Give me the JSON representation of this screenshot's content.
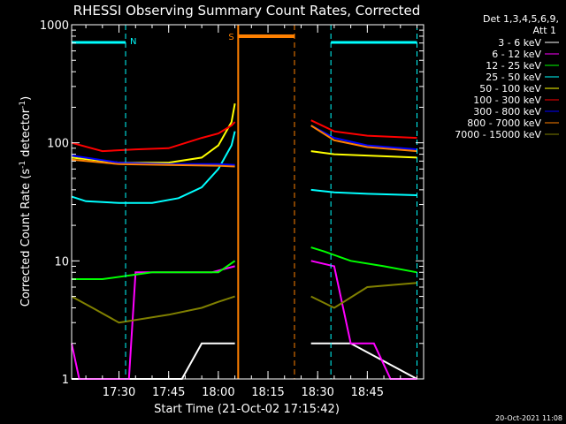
{
  "chart_data": {
    "type": "line",
    "title": "RHESSI Observing Summary Count Rates, Corrected",
    "xlabel": "Start Time (21-Oct-02 17:15:42)",
    "ylabel": "Corrected Count Rate (s⁻¹ detector⁻¹)",
    "ylabel_base": "Corrected Count Rate (s",
    "ylabel_sup1": "-1",
    "ylabel_mid": " detector",
    "ylabel_sup2": "-1",
    "ylabel_end": ")",
    "y_scale": "log",
    "ylim": [
      1,
      1000
    ],
    "xlim": [
      "17:15:42",
      "19:02:00"
    ],
    "x_ticks": [
      "17:30",
      "17:45",
      "18:00",
      "18:15",
      "18:30",
      "18:45"
    ],
    "y_ticks": [
      "1",
      "10",
      "100",
      "1000"
    ],
    "legend": {
      "placement": "right",
      "header_line1": "Det 1,3,4,5,6,9,",
      "header_line2": "Att 1",
      "entries": [
        {
          "label": "3 - 6 keV",
          "color": "#ffffff"
        },
        {
          "label": "6 - 12 keV",
          "color": "#ff00ff"
        },
        {
          "label": "12 - 25 keV",
          "color": "#00ff00"
        },
        {
          "label": "25 - 50 keV",
          "color": "#00ffff"
        },
        {
          "label": "50 - 100 keV",
          "color": "#ffff00"
        },
        {
          "label": "100 - 300 keV",
          "color": "#ff0000"
        },
        {
          "label": "300 - 800 keV",
          "color": "#0000ff"
        },
        {
          "label": "800 - 7000 keV",
          "color": "#ff8000"
        },
        {
          "label": "7000 - 15000 keV",
          "color": "#808000"
        }
      ]
    },
    "annotations": {
      "night_label": "N",
      "saa_label": "S",
      "night_color": "#00ffff",
      "saa_color": "#ff8000",
      "night_periods": [
        [
          "17:15:42",
          "17:32:00"
        ],
        [
          "18:34:00",
          "19:00:00"
        ]
      ],
      "saa_period": [
        "18:06:00",
        "18:23:00"
      ],
      "data_gap": [
        "18:06:00",
        "18:28:00"
      ]
    },
    "series": [
      {
        "name": "3 - 6 keV",
        "color": "#ffffff",
        "points": [
          [
            "17:15:42",
            1
          ],
          [
            "17:49:00",
            1
          ],
          [
            "17:55:00",
            2
          ],
          [
            "18:05:00",
            2
          ],
          [
            "18:28:00",
            2
          ],
          [
            "18:40:00",
            2
          ],
          [
            "19:00:00",
            1
          ]
        ]
      },
      {
        "name": "6 - 12 keV",
        "color": "#ff00ff",
        "points": [
          [
            "17:15:42",
            2
          ],
          [
            "17:18:00",
            1
          ],
          [
            "17:33:00",
            1
          ],
          [
            "17:35:00",
            8
          ],
          [
            "17:50:00",
            8
          ],
          [
            "17:58:00",
            8
          ],
          [
            "18:05:00",
            9
          ],
          [
            "18:28:00",
            10
          ],
          [
            "18:35:00",
            9
          ],
          [
            "18:40:00",
            2
          ],
          [
            "18:47:00",
            2
          ],
          [
            "18:52:00",
            1
          ],
          [
            "19:00:00",
            1
          ]
        ]
      },
      {
        "name": "12 - 25 keV",
        "color": "#00ff00",
        "points": [
          [
            "17:15:42",
            7
          ],
          [
            "17:25:00",
            7
          ],
          [
            "17:40:00",
            8
          ],
          [
            "17:50:00",
            8
          ],
          [
            "18:00:00",
            8
          ],
          [
            "18:05:00",
            10
          ],
          [
            "18:28:00",
            13
          ],
          [
            "18:32:00",
            12
          ],
          [
            "18:40:00",
            10
          ],
          [
            "18:50:00",
            9
          ],
          [
            "19:00:00",
            8
          ]
        ]
      },
      {
        "name": "25 - 50 keV",
        "color": "#00ffff",
        "points": [
          [
            "17:15:42",
            35
          ],
          [
            "17:20:00",
            32
          ],
          [
            "17:30:00",
            31
          ],
          [
            "17:40:00",
            31
          ],
          [
            "17:48:00",
            34
          ],
          [
            "17:55:00",
            42
          ],
          [
            "18:00:00",
            60
          ],
          [
            "18:04:00",
            95
          ],
          [
            "18:05:00",
            125
          ],
          [
            "18:28:00",
            40
          ],
          [
            "18:35:00",
            38
          ],
          [
            "18:45:00",
            37
          ],
          [
            "19:00:00",
            36
          ]
        ]
      },
      {
        "name": "50 - 100 keV",
        "color": "#ffff00",
        "points": [
          [
            "17:15:42",
            75
          ],
          [
            "17:30:00",
            68
          ],
          [
            "17:45:00",
            68
          ],
          [
            "17:55:00",
            75
          ],
          [
            "18:00:00",
            95
          ],
          [
            "18:04:00",
            150
          ],
          [
            "18:05:00",
            215
          ],
          [
            "18:28:00",
            85
          ],
          [
            "18:35:00",
            80
          ],
          [
            "18:45:00",
            78
          ],
          [
            "19:00:00",
            75
          ]
        ]
      },
      {
        "name": "100 - 300 keV",
        "color": "#ff0000",
        "points": [
          [
            "17:15:42",
            100
          ],
          [
            "17:25:00",
            85
          ],
          [
            "17:35:00",
            88
          ],
          [
            "17:45:00",
            90
          ],
          [
            "17:55:00",
            110
          ],
          [
            "18:00:00",
            120
          ],
          [
            "18:04:00",
            140
          ],
          [
            "18:05:00",
            150
          ],
          [
            "18:28:00",
            155
          ],
          [
            "18:35:00",
            125
          ],
          [
            "18:45:00",
            115
          ],
          [
            "19:00:00",
            110
          ]
        ]
      },
      {
        "name": "300 - 800 keV",
        "color": "#0000ff",
        "points": [
          [
            "17:15:42",
            78
          ],
          [
            "17:30:00",
            68
          ],
          [
            "17:45:00",
            66
          ],
          [
            "18:00:00",
            66
          ],
          [
            "18:05:00",
            65
          ],
          [
            "18:28:00",
            140
          ],
          [
            "18:35:00",
            110
          ],
          [
            "18:45:00",
            95
          ],
          [
            "19:00:00",
            88
          ]
        ]
      },
      {
        "name": "800 - 7000 keV",
        "color": "#ff8000",
        "points": [
          [
            "17:15:42",
            72
          ],
          [
            "17:30:00",
            66
          ],
          [
            "17:45:00",
            65
          ],
          [
            "18:00:00",
            64
          ],
          [
            "18:05:00",
            63
          ],
          [
            "18:28:00",
            140
          ],
          [
            "18:35:00",
            105
          ],
          [
            "18:45:00",
            92
          ],
          [
            "19:00:00",
            85
          ]
        ]
      },
      {
        "name": "7000 - 15000 keV",
        "color": "#808000",
        "points": [
          [
            "17:15:42",
            5
          ],
          [
            "17:22:00",
            4
          ],
          [
            "17:30:00",
            3
          ],
          [
            "17:45:00",
            3.5
          ],
          [
            "17:55:00",
            4
          ],
          [
            "18:00:00",
            4.5
          ],
          [
            "18:05:00",
            5
          ],
          [
            "18:28:00",
            5
          ],
          [
            "18:35:00",
            4
          ],
          [
            "18:45:00",
            6
          ],
          [
            "19:00:00",
            6.5
          ]
        ]
      }
    ]
  },
  "footer": {
    "timestamp": "20-Oct-2021 11:08"
  }
}
